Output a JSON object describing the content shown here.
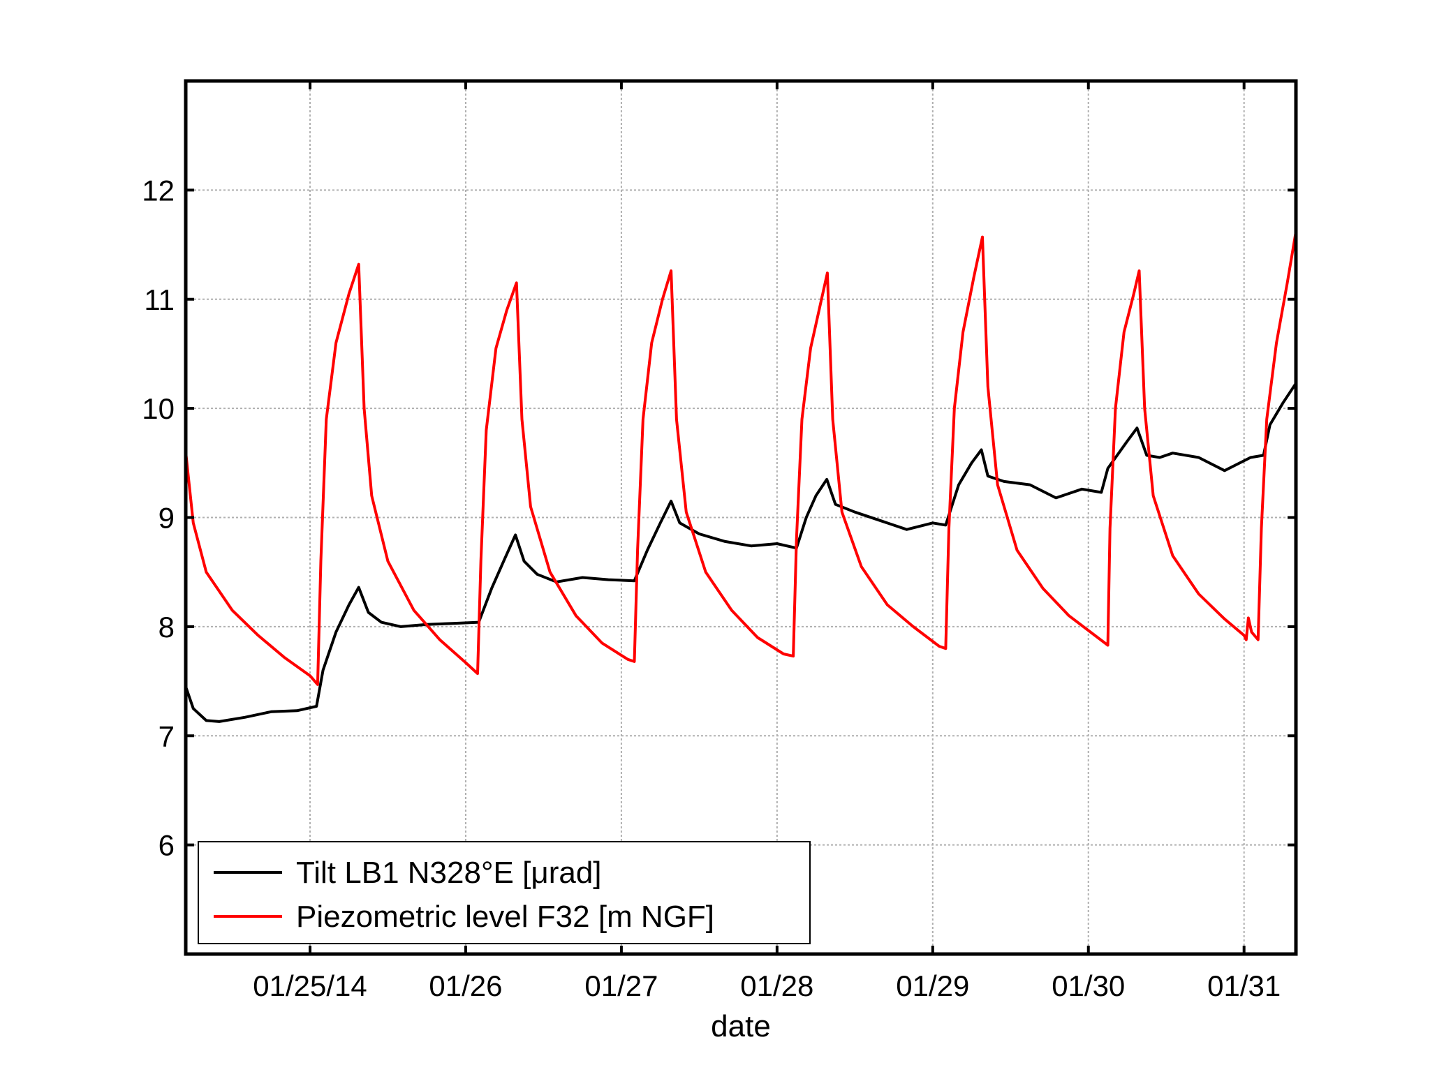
{
  "chart_data": {
    "type": "line",
    "title": "",
    "xlabel": "date",
    "ylabel": "",
    "x_unit": "days",
    "xlim": [
      "2014-01-24 04:50",
      "2014-01-31 08:00"
    ],
    "ylim": [
      5,
      13
    ],
    "grid": true,
    "legend_position": "bottom-left",
    "x_ticks": [
      {
        "x": "2014-01-25 00:00",
        "label": "01/25/14"
      },
      {
        "x": "2014-01-26 00:00",
        "label": "01/26"
      },
      {
        "x": "2014-01-27 00:00",
        "label": "01/27"
      },
      {
        "x": "2014-01-28 00:00",
        "label": "01/28"
      },
      {
        "x": "2014-01-29 00:00",
        "label": "01/29"
      },
      {
        "x": "2014-01-30 00:00",
        "label": "01/30"
      },
      {
        "x": "2014-01-31 00:00",
        "label": "01/31"
      }
    ],
    "y_ticks": [
      6,
      7,
      8,
      9,
      10,
      11,
      12
    ],
    "y_tick_labels": [
      "6",
      "7",
      "8",
      "9",
      "10",
      "11",
      "12"
    ],
    "series": [
      {
        "name": "Tilt LB1 N328°E [μrad]",
        "color": "#000000",
        "points": [
          [
            "2014-01-24 04:50",
            7.45
          ],
          [
            "2014-01-24 06:00",
            7.25
          ],
          [
            "2014-01-24 08:00",
            7.14
          ],
          [
            "2014-01-24 10:00",
            7.13
          ],
          [
            "2014-01-24 14:00",
            7.17
          ],
          [
            "2014-01-24 18:00",
            7.22
          ],
          [
            "2014-01-24 22:00",
            7.23
          ],
          [
            "2014-01-25 01:00",
            7.27
          ],
          [
            "2014-01-25 02:00",
            7.6
          ],
          [
            "2014-01-25 04:00",
            7.95
          ],
          [
            "2014-01-25 06:00",
            8.2
          ],
          [
            "2014-01-25 07:30",
            8.36
          ],
          [
            "2014-01-25 09:00",
            8.13
          ],
          [
            "2014-01-25 11:00",
            8.04
          ],
          [
            "2014-01-25 14:00",
            8.0
          ],
          [
            "2014-01-25 18:00",
            8.02
          ],
          [
            "2014-01-25 22:00",
            8.03
          ],
          [
            "2014-01-26 02:00",
            8.04
          ],
          [
            "2014-01-26 04:00",
            8.35
          ],
          [
            "2014-01-26 06:00",
            8.62
          ],
          [
            "2014-01-26 07:40",
            8.84
          ],
          [
            "2014-01-26 09:00",
            8.6
          ],
          [
            "2014-01-26 11:00",
            8.48
          ],
          [
            "2014-01-26 14:00",
            8.41
          ],
          [
            "2014-01-26 18:00",
            8.45
          ],
          [
            "2014-01-26 22:00",
            8.43
          ],
          [
            "2014-01-27 02:00",
            8.42
          ],
          [
            "2014-01-27 04:00",
            8.7
          ],
          [
            "2014-01-27 06:00",
            8.95
          ],
          [
            "2014-01-27 07:40",
            9.15
          ],
          [
            "2014-01-27 09:00",
            8.95
          ],
          [
            "2014-01-27 12:00",
            8.85
          ],
          [
            "2014-01-27 16:00",
            8.78
          ],
          [
            "2014-01-27 20:00",
            8.74
          ],
          [
            "2014-01-28 00:00",
            8.76
          ],
          [
            "2014-01-28 03:00",
            8.72
          ],
          [
            "2014-01-28 04:30",
            9.0
          ],
          [
            "2014-01-28 06:00",
            9.2
          ],
          [
            "2014-01-28 07:40",
            9.35
          ],
          [
            "2014-01-28 09:00",
            9.12
          ],
          [
            "2014-01-28 12:00",
            9.05
          ],
          [
            "2014-01-28 16:00",
            8.97
          ],
          [
            "2014-01-28 20:00",
            8.89
          ],
          [
            "2014-01-29 00:00",
            8.95
          ],
          [
            "2014-01-29 02:00",
            8.93
          ],
          [
            "2014-01-29 04:00",
            9.3
          ],
          [
            "2014-01-29 06:00",
            9.5
          ],
          [
            "2014-01-29 07:30",
            9.62
          ],
          [
            "2014-01-29 08:30",
            9.38
          ],
          [
            "2014-01-29 11:00",
            9.33
          ],
          [
            "2014-01-29 15:00",
            9.3
          ],
          [
            "2014-01-29 19:00",
            9.18
          ],
          [
            "2014-01-29 23:00",
            9.26
          ],
          [
            "2014-01-30 02:00",
            9.23
          ],
          [
            "2014-01-30 03:00",
            9.45
          ],
          [
            "2014-01-30 06:00",
            9.7
          ],
          [
            "2014-01-30 07:30",
            9.82
          ],
          [
            "2014-01-30 09:00",
            9.57
          ],
          [
            "2014-01-30 11:00",
            9.55
          ],
          [
            "2014-01-30 13:00",
            9.59
          ],
          [
            "2014-01-30 17:00",
            9.55
          ],
          [
            "2014-01-30 21:00",
            9.43
          ],
          [
            "2014-01-31 01:00",
            9.55
          ],
          [
            "2014-01-31 03:00",
            9.57
          ],
          [
            "2014-01-31 04:00",
            9.85
          ],
          [
            "2014-01-31 06:00",
            10.05
          ],
          [
            "2014-01-31 08:00",
            10.23
          ]
        ]
      },
      {
        "name": "Piezometric level F32 [m NGF]",
        "color": "#ff0000",
        "points": [
          [
            "2014-01-24 04:50",
            9.6
          ],
          [
            "2014-01-24 06:00",
            8.95
          ],
          [
            "2014-01-24 08:00",
            8.5
          ],
          [
            "2014-01-24 12:00",
            8.15
          ],
          [
            "2014-01-24 16:00",
            7.92
          ],
          [
            "2014-01-24 20:00",
            7.72
          ],
          [
            "2014-01-25 00:00",
            7.55
          ],
          [
            "2014-01-25 01:10",
            7.47
          ],
          [
            "2014-01-25 01:40",
            8.6
          ],
          [
            "2014-01-25 02:30",
            9.9
          ],
          [
            "2014-01-25 04:00",
            10.6
          ],
          [
            "2014-01-25 06:00",
            11.05
          ],
          [
            "2014-01-25 07:30",
            11.32
          ],
          [
            "2014-01-25 08:20",
            10.0
          ],
          [
            "2014-01-25 09:30",
            9.2
          ],
          [
            "2014-01-25 12:00",
            8.6
          ],
          [
            "2014-01-25 16:00",
            8.15
          ],
          [
            "2014-01-25 20:00",
            7.88
          ],
          [
            "2014-01-26 00:00",
            7.67
          ],
          [
            "2014-01-26 01:50",
            7.57
          ],
          [
            "2014-01-26 02:20",
            8.6
          ],
          [
            "2014-01-26 03:10",
            9.8
          ],
          [
            "2014-01-26 04:40",
            10.55
          ],
          [
            "2014-01-26 06:20",
            10.9
          ],
          [
            "2014-01-26 07:50",
            11.15
          ],
          [
            "2014-01-26 08:40",
            9.9
          ],
          [
            "2014-01-26 10:00",
            9.1
          ],
          [
            "2014-01-26 13:00",
            8.5
          ],
          [
            "2014-01-26 17:00",
            8.1
          ],
          [
            "2014-01-26 21:00",
            7.85
          ],
          [
            "2014-01-27 01:00",
            7.7
          ],
          [
            "2014-01-27 02:00",
            7.68
          ],
          [
            "2014-01-27 02:30",
            8.7
          ],
          [
            "2014-01-27 03:20",
            9.9
          ],
          [
            "2014-01-27 04:40",
            10.6
          ],
          [
            "2014-01-27 06:20",
            11.0
          ],
          [
            "2014-01-27 07:40",
            11.26
          ],
          [
            "2014-01-27 08:30",
            9.9
          ],
          [
            "2014-01-27 10:00",
            9.05
          ],
          [
            "2014-01-27 13:00",
            8.5
          ],
          [
            "2014-01-27 17:00",
            8.15
          ],
          [
            "2014-01-27 21:00",
            7.9
          ],
          [
            "2014-01-28 01:00",
            7.75
          ],
          [
            "2014-01-28 02:30",
            7.73
          ],
          [
            "2014-01-28 03:00",
            8.8
          ],
          [
            "2014-01-28 03:50",
            9.9
          ],
          [
            "2014-01-28 05:10",
            10.55
          ],
          [
            "2014-01-28 06:40",
            10.95
          ],
          [
            "2014-01-28 07:45",
            11.24
          ],
          [
            "2014-01-28 08:35",
            9.9
          ],
          [
            "2014-01-28 10:00",
            9.05
          ],
          [
            "2014-01-28 13:00",
            8.55
          ],
          [
            "2014-01-28 17:00",
            8.2
          ],
          [
            "2014-01-28 21:00",
            8.0
          ],
          [
            "2014-01-29 01:00",
            7.82
          ],
          [
            "2014-01-29 02:00",
            7.8
          ],
          [
            "2014-01-29 02:30",
            8.9
          ],
          [
            "2014-01-29 03:20",
            10.0
          ],
          [
            "2014-01-29 04:40",
            10.7
          ],
          [
            "2014-01-29 06:20",
            11.2
          ],
          [
            "2014-01-29 07:40",
            11.57
          ],
          [
            "2014-01-29 08:30",
            10.2
          ],
          [
            "2014-01-29 10:00",
            9.3
          ],
          [
            "2014-01-29 13:00",
            8.7
          ],
          [
            "2014-01-29 17:00",
            8.35
          ],
          [
            "2014-01-29 21:00",
            8.1
          ],
          [
            "2014-01-30 01:00",
            7.92
          ],
          [
            "2014-01-30 03:00",
            7.83
          ],
          [
            "2014-01-30 03:20",
            8.9
          ],
          [
            "2014-01-30 04:10",
            10.0
          ],
          [
            "2014-01-30 05:30",
            10.7
          ],
          [
            "2014-01-30 07:00",
            11.05
          ],
          [
            "2014-01-30 07:50",
            11.26
          ],
          [
            "2014-01-30 08:40",
            10.0
          ],
          [
            "2014-01-30 10:00",
            9.2
          ],
          [
            "2014-01-30 13:00",
            8.65
          ],
          [
            "2014-01-30 17:00",
            8.3
          ],
          [
            "2014-01-30 21:00",
            8.07
          ],
          [
            "2014-01-31 00:00",
            7.92
          ],
          [
            "2014-01-31 00:20",
            7.88
          ],
          [
            "2014-01-31 00:40",
            8.08
          ],
          [
            "2014-01-31 01:10",
            7.95
          ],
          [
            "2014-01-31 02:10",
            7.88
          ],
          [
            "2014-01-31 02:40",
            8.9
          ],
          [
            "2014-01-31 03:30",
            9.9
          ],
          [
            "2014-01-31 05:00",
            10.6
          ],
          [
            "2014-01-31 06:40",
            11.15
          ],
          [
            "2014-01-31 08:00",
            11.62
          ]
        ]
      }
    ]
  }
}
